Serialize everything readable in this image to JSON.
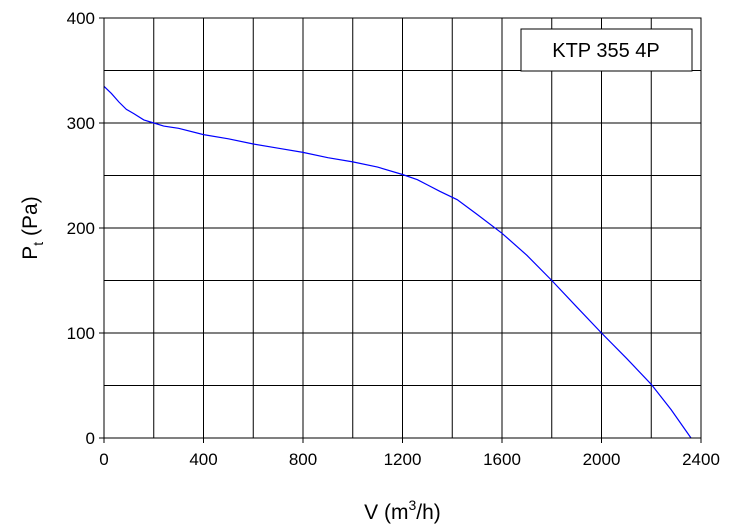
{
  "chart_data": {
    "type": "line",
    "title": "",
    "xlabel": {
      "prefix": "V (m",
      "sup": "3",
      "suffix": "/h)"
    },
    "ylabel": {
      "prefix": "P",
      "sub": "t",
      "suffix": " (Pa)"
    },
    "xlim": [
      0,
      2400
    ],
    "ylim": [
      0,
      400
    ],
    "x_ticks": [
      0,
      400,
      800,
      1200,
      1600,
      2000,
      2400
    ],
    "y_ticks": [
      0,
      100,
      200,
      300,
      400
    ],
    "x_grid_step": 200,
    "y_grid_step": 50,
    "grid": true,
    "legend_box": "KTP 355 4P",
    "legend_position": "top-right",
    "series": [
      {
        "color": "#0000ff",
        "x": [
          0,
          30,
          60,
          90,
          120,
          160,
          200,
          240,
          300,
          400,
          500,
          600,
          700,
          800,
          900,
          1000,
          1100,
          1200,
          1260,
          1300,
          1350,
          1420,
          1500,
          1600,
          1700,
          1800,
          1900,
          2000,
          2100,
          2200,
          2280,
          2360
        ],
        "y": [
          335,
          328,
          320,
          313,
          309,
          303,
          300,
          297,
          295,
          289,
          285,
          280,
          276,
          272,
          267,
          263,
          258,
          251,
          246,
          241,
          235,
          227,
          213,
          195,
          174,
          150,
          125,
          100,
          76,
          51,
          27,
          0
        ]
      }
    ]
  }
}
